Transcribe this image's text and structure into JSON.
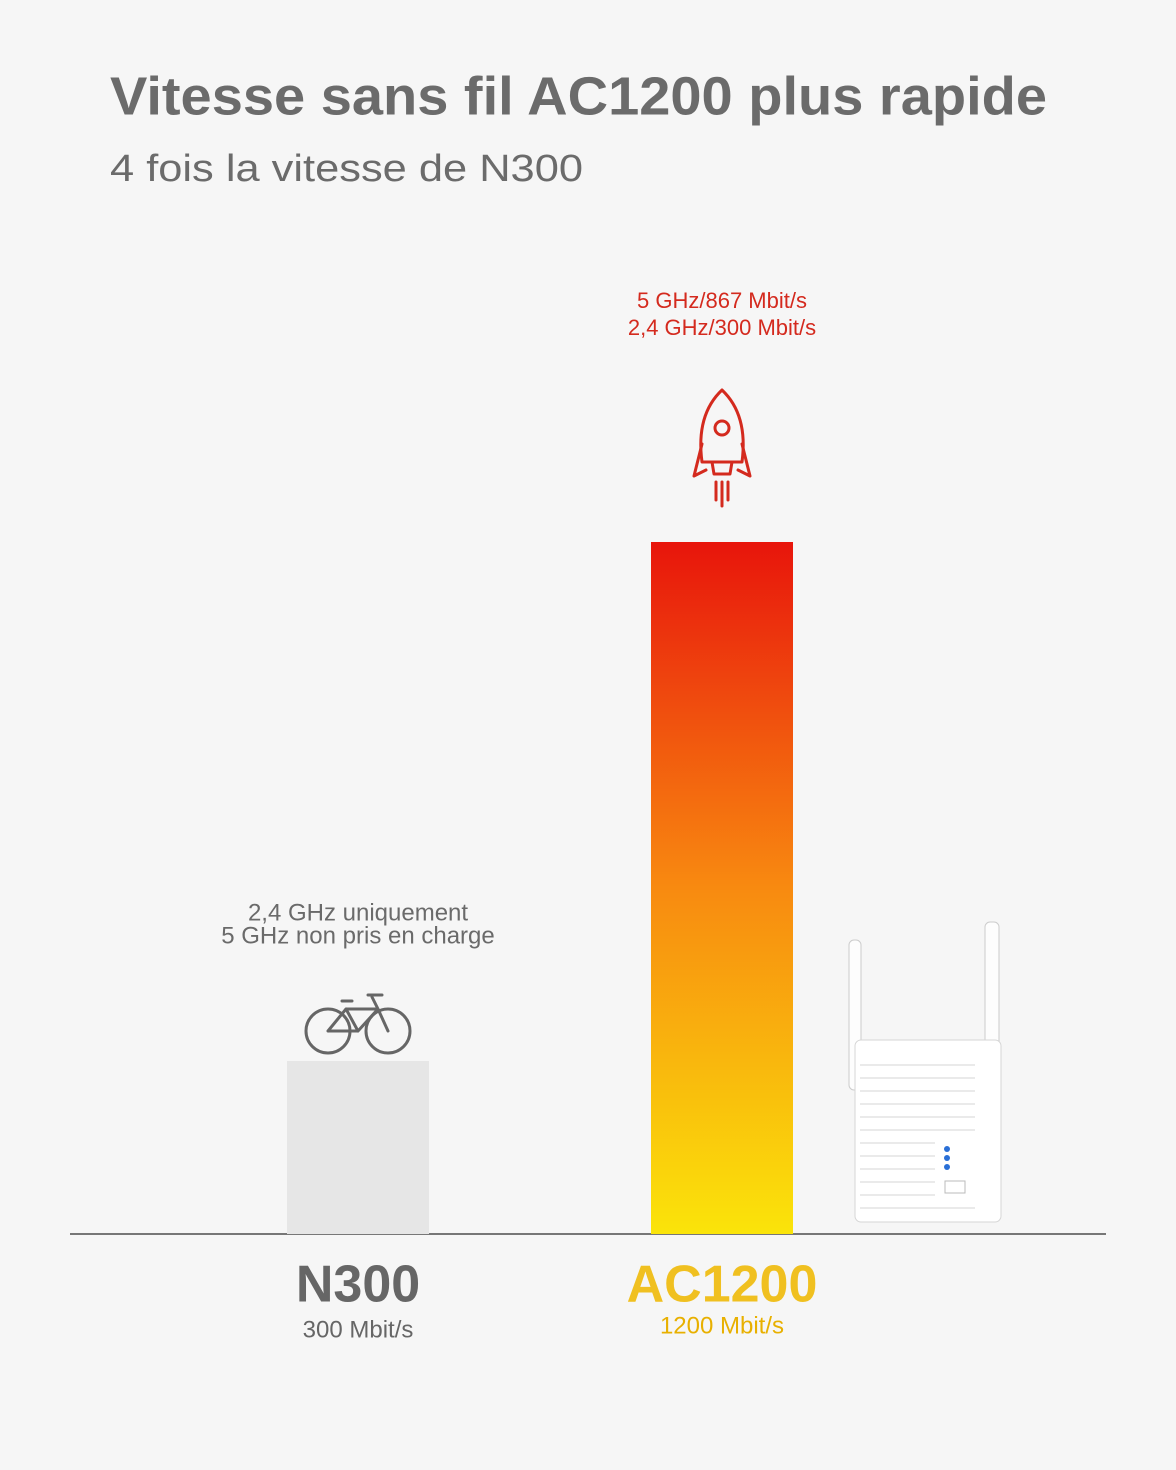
{
  "chart_data": {
    "type": "bar",
    "title": "Vitesse sans fil AC1200 plus rapide",
    "subtitle": "4 fois la vitesse de N300",
    "categories": [
      "N300",
      "AC1200"
    ],
    "values": [
      300,
      1200
    ],
    "value_labels": [
      "300 Mbit/s",
      "1200 Mbit/s"
    ],
    "colors": [
      [
        "#e6e6e6",
        "#e6e6e6"
      ],
      [
        "#e8150c",
        "#fae40a"
      ]
    ],
    "label_colors": [
      "#666666",
      "#f0c020"
    ],
    "annotations": [
      [
        "2,4 GHz uniquement",
        "5 GHz non pris en charge"
      ],
      [
        "5 GHz/867 Mbit/s",
        "2,4 GHz/300 Mbit/s"
      ]
    ],
    "annotation_colors": [
      "#6a6a6a",
      "#d42a1e"
    ]
  }
}
